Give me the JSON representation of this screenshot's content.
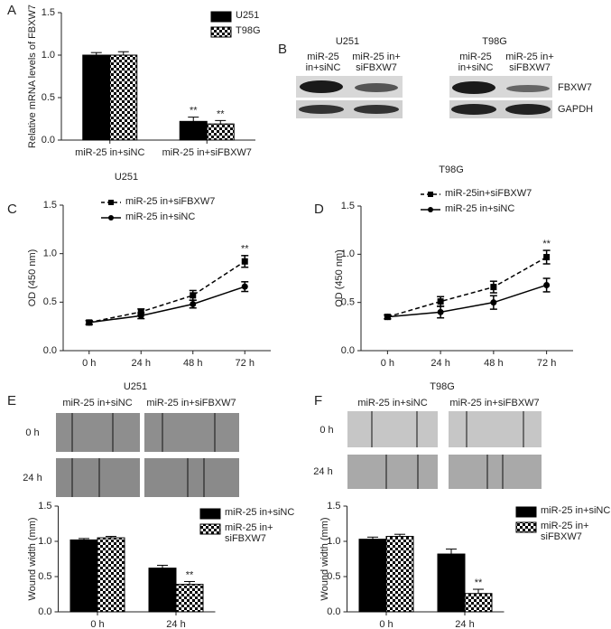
{
  "chart_data": [
    {
      "type": "bar",
      "panel": "A",
      "ylabel": "Relative mRNA levels of FBXW7",
      "categories": [
        "miR-25 in+siNC",
        "miR-25 in+siFBXW7"
      ],
      "series": [
        {
          "name": "U251",
          "color": "#000000",
          "pattern": "solid",
          "values": [
            1.0,
            0.22
          ],
          "errors": [
            0.03,
            0.05
          ]
        },
        {
          "name": "T98G",
          "color": "#000000",
          "pattern": "checkered",
          "values": [
            1.0,
            0.19
          ],
          "errors": [
            0.04,
            0.04
          ]
        }
      ],
      "annotations": [
        "**",
        "**"
      ],
      "ylim": [
        0,
        1.5
      ],
      "yticks": [
        {
          "value": 0,
          "label": "0.0"
        },
        0.5,
        {
          "value": 1,
          "label": "1.0"
        },
        1.5
      ],
      "grid": false
    },
    {
      "type": "line",
      "panel": "C",
      "title": "U251",
      "ylabel": "OD (450 nm)",
      "categories": [
        "0 h",
        "24 h",
        "48 h",
        "72 h"
      ],
      "series": [
        {
          "name": "miR-25 in+siFBXW7",
          "color": "#000000",
          "linestyle": "dashed",
          "marker": "square",
          "values": [
            0.29,
            0.4,
            0.57,
            0.92
          ],
          "errors": [
            0.02,
            0.03,
            0.05,
            0.06
          ]
        },
        {
          "name": "miR-25 in+siNC",
          "color": "#000000",
          "linestyle": "solid",
          "marker": "circle",
          "values": [
            0.29,
            0.36,
            0.48,
            0.66
          ],
          "errors": [
            0.02,
            0.03,
            0.04,
            0.05
          ]
        }
      ],
      "annotations": [
        "**"
      ],
      "ylim": [
        0,
        1.5
      ],
      "yticks": [
        {
          "value": 0,
          "label": "0.0"
        },
        0.5,
        {
          "value": 1,
          "label": "1.0"
        },
        1.5
      ],
      "grid": false
    },
    {
      "type": "line",
      "panel": "D",
      "title": "T98G",
      "ylabel": "OD (450 nm)",
      "categories": [
        "0 h",
        "24 h",
        "48 h",
        "72 h"
      ],
      "series": [
        {
          "name": "miR-25in+siFBXW7",
          "color": "#000000",
          "linestyle": "dashed",
          "marker": "square",
          "values": [
            0.35,
            0.51,
            0.66,
            0.97
          ],
          "errors": [
            0.02,
            0.05,
            0.06,
            0.07
          ]
        },
        {
          "name": "miR-25 in+siNC",
          "color": "#000000",
          "linestyle": "solid",
          "marker": "circle",
          "values": [
            0.35,
            0.4,
            0.5,
            0.68
          ],
          "errors": [
            0.02,
            0.06,
            0.07,
            0.07
          ]
        }
      ],
      "annotations": [
        "**"
      ],
      "ylim": [
        0,
        1.5
      ],
      "yticks": [
        {
          "value": 0,
          "label": "0.0"
        },
        0.5,
        {
          "value": 1,
          "label": "1.0"
        },
        1.5
      ],
      "grid": false
    },
    {
      "type": "bar",
      "panel": "E",
      "ylabel": "Wound width (mm)",
      "categories": [
        "0 h",
        "24 h"
      ],
      "series": [
        {
          "name": "miR-25 in+siNC",
          "color": "#000000",
          "pattern": "solid",
          "values": [
            1.02,
            0.62
          ],
          "errors": [
            0.02,
            0.04
          ]
        },
        {
          "name": "miR-25 in+\nsiFBXW7",
          "color": "#000000",
          "pattern": "checkered",
          "values": [
            1.05,
            0.39
          ],
          "errors": [
            0.02,
            0.04
          ]
        }
      ],
      "annotations": [
        "**"
      ],
      "ylim": [
        0,
        1.5
      ],
      "yticks": [
        {
          "value": 0,
          "label": "0.0"
        },
        0.5,
        {
          "value": 1,
          "label": "1.0"
        },
        1.5
      ],
      "grid": false
    },
    {
      "type": "bar",
      "panel": "F",
      "ylabel": "Wound width (mm)",
      "categories": [
        "0 h",
        "24 h"
      ],
      "series": [
        {
          "name": "miR-25 in+siNC",
          "color": "#000000",
          "pattern": "solid",
          "values": [
            1.03,
            0.82
          ],
          "errors": [
            0.03,
            0.07
          ]
        },
        {
          "name": "miR-25 in+\nsiFBXW7",
          "color": "#000000",
          "pattern": "checkered",
          "values": [
            1.07,
            0.26
          ],
          "errors": [
            0.03,
            0.06
          ]
        }
      ],
      "annotations": [
        "**"
      ],
      "ylim": [
        0,
        1.5
      ],
      "yticks": [
        {
          "value": 0,
          "label": "0.0"
        },
        0.5,
        {
          "value": 1,
          "label": "1.0"
        },
        1.5
      ],
      "grid": false
    }
  ],
  "western_blot": {
    "panel": "B",
    "groups": [
      {
        "title": "U251",
        "lanes": [
          "miR-25\nin+siNC",
          "miR-25 in+\nsiFBXW7"
        ]
      },
      {
        "title": "T98G",
        "lanes": [
          "miR-25\nin+siNC",
          "miR-25 in+\nsiFBXW7"
        ]
      }
    ],
    "bands": [
      "FBXW7",
      "GAPDH"
    ]
  },
  "wound_assay": [
    {
      "title": "U251",
      "columns": [
        "miR-25 in+siNC",
        "miR-25 in+siFBXW7"
      ],
      "rows": [
        "0 h",
        "24 h"
      ]
    },
    {
      "title": "T98G",
      "columns": [
        "miR-25 in+siNC",
        "miR-25 in+siFBXW7"
      ],
      "rows": [
        "0 h",
        "24 h"
      ]
    }
  ]
}
